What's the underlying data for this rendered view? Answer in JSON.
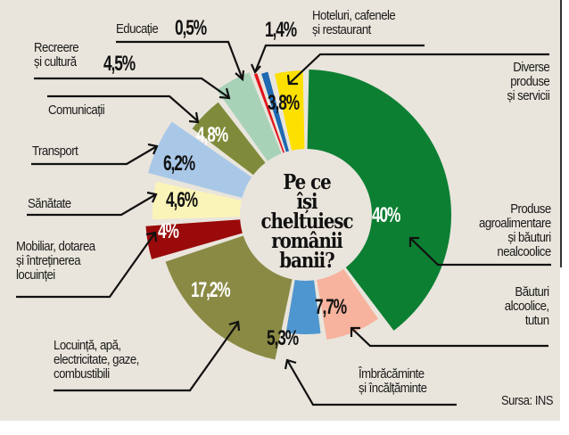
{
  "chart_data": {
    "type": "pie",
    "variant": "donut-exploded",
    "title": "Pe ce își cheltuiesc românii banii?",
    "source": "Sursa: INS",
    "unit": "%",
    "slices": [
      {
        "label": "Produse agroalimentare și băuturi nealcoolice",
        "value": 40,
        "display": "40%",
        "color": "#0c7f33"
      },
      {
        "label": "Băuturi alcoolice, tutun",
        "value": 7.7,
        "display": "7,7%",
        "color": "#f7b39d"
      },
      {
        "label": "Îmbrăcăminte și încălțăminte",
        "value": 5.3,
        "display": "5,3%",
        "color": "#4e96cf"
      },
      {
        "label": "Locuință, apă, electricitate, gaze, combustibili",
        "value": 17.2,
        "display": "17,2%",
        "color": "#8a8a45"
      },
      {
        "label": "Mobiliar, dotarea și întreținerea locuinței",
        "value": 4,
        "display": "4%",
        "color": "#9a0a0a"
      },
      {
        "label": "Sănătate",
        "value": 4.6,
        "display": "4,6%",
        "color": "#fbf4b8"
      },
      {
        "label": "Transport",
        "value": 6.2,
        "display": "6,2%",
        "color": "#a9c8e8"
      },
      {
        "label": "Comunicații",
        "value": 4.8,
        "display": "4,8%",
        "color": "#7f8b3a"
      },
      {
        "label": "Recreere și cultură",
        "value": 4.5,
        "display": "4,5%",
        "color": "#a8d2b8"
      },
      {
        "label": "Educație",
        "value": 0.5,
        "display": "0,5%",
        "color": "#e3141b"
      },
      {
        "label": "Hoteluri, cafenele și restaurant",
        "value": 1.4,
        "display": "1,4%",
        "color": "#1f69b3"
      },
      {
        "label": "Diverse produse și servicii",
        "value": 3.8,
        "display": "3,8%",
        "color": "#fde000"
      }
    ]
  },
  "title": "Pe ce\nîși\ncheltuiesc\nromânii\nbanii?",
  "title_lines": [
    "Pe ce își",
    "cheltuiesc",
    "românii",
    "banii?"
  ],
  "labels": {
    "educatie": "Educație",
    "educatie_pct": "0,5%",
    "hoteluri": "Hoteluri, cafenele\nși restaurant",
    "hoteluri_pct": "1,4%",
    "recreere": "Recreere\nși cultură",
    "recreere_pct": "4,5%",
    "comunicatii": "Comunicații",
    "transport": "Transport",
    "sanatate": "Sănătate",
    "mobilier": "Mobiliar, dotarea\nși întreținerea\nlocuinței",
    "locuinta": "Locuință, apă,\nelectricitate, gaze,\ncombustibili",
    "diverse": "Diverse\nproduse\nși servicii",
    "produse": "Produse\nagroalimentare\nși băuturi\nnealcoolice",
    "bauturi": "Băuturi\nalcoolice,\ntutun",
    "imbracaminte": "Îmbrăcăminte\nși încălțăminte"
  },
  "pcts": {
    "p40": "40%",
    "p77": "7,7%",
    "p53": "5,3%",
    "p172": "17,2%",
    "p4": "4%",
    "p46": "4,6%",
    "p62": "6,2%",
    "p48": "4,8%",
    "p38": "3,8%"
  },
  "source": "Sursa: INS"
}
